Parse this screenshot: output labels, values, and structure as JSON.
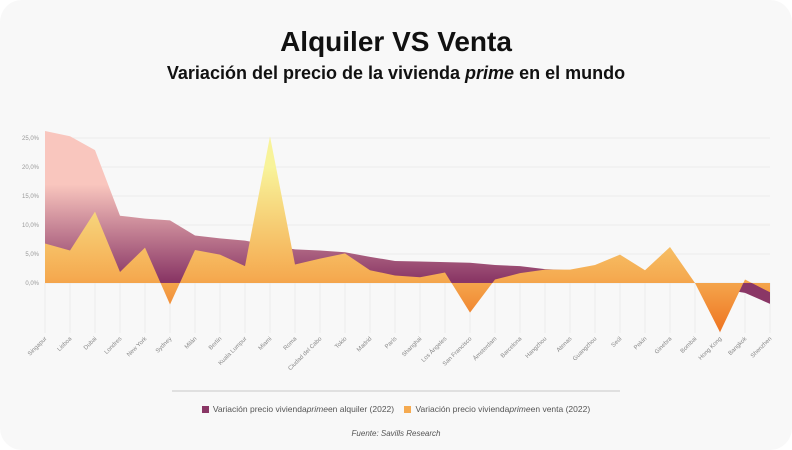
{
  "header": {
    "title": "Alquiler VS Venta",
    "subtitle_pre": "Variación del precio de la vivienda ",
    "subtitle_em": "prime",
    "subtitle_post": " en el mundo"
  },
  "legend": {
    "rent": {
      "pre": "Variación precio vivienda ",
      "em": "prime",
      "post": " en alquiler (2022)"
    },
    "sale": {
      "pre": "Variación precio vivienda ",
      "em": "prime",
      "post": " en venta (2022)"
    }
  },
  "source": "Fuente: Savills Research",
  "colors": {
    "rent_top": "#f9c6be",
    "rent_bottom": "#8a3766",
    "sale_top": "#f8f39a",
    "sale_mid": "#f5aa50",
    "sale_bottom": "#ee7320"
  },
  "chart_data": {
    "type": "area",
    "ylim": [
      -8.6,
      26.5
    ],
    "yticks": [
      "0,0%",
      "5,0%",
      "10,0%",
      "15,0%",
      "20,0%",
      "25,0%"
    ],
    "ytick_values": [
      0,
      5,
      10,
      15,
      20,
      25
    ],
    "grid": true,
    "legend_position": "bottom",
    "categories": [
      "Singapur",
      "Lisboa",
      "Dubai",
      "Londres",
      "New York",
      "Sydney",
      "Milán",
      "Berlín",
      "Kuala Lumpur",
      "Miami",
      "Roma",
      "Ciudad del Cabo",
      "Tokio",
      "Madrid",
      "París",
      "Shanghai",
      "Los Ángeles",
      "San Francisco",
      "Ámsterdam",
      "Barcelona",
      "Hangzhou",
      "Atenas",
      "Guangzhou",
      "Seúl",
      "Pekín",
      "Ginebra",
      "Bombai",
      "Hong Kong",
      "Bangkok",
      "Shenzhen"
    ],
    "series": [
      {
        "name": "Variación precio vivienda prime en alquiler (2022)",
        "values": [
          26.2,
          25.3,
          22.9,
          11.6,
          11.1,
          10.8,
          8.2,
          7.7,
          7.3,
          6.5,
          5.8,
          5.6,
          5.3,
          4.5,
          3.8,
          3.7,
          3.6,
          3.5,
          3.1,
          2.9,
          2.4,
          2.2,
          2.0,
          1.8,
          1.5,
          1.0,
          0.0,
          -1.0,
          -1.7,
          -3.6
        ]
      },
      {
        "name": "Variación precio vivienda prime en venta (2022)",
        "values": [
          6.8,
          5.6,
          12.3,
          1.9,
          6.1,
          -3.7,
          5.7,
          4.9,
          2.9,
          25.3,
          3.2,
          4.2,
          5.1,
          2.2,
          1.3,
          1.0,
          1.8,
          -5.1,
          0.6,
          1.7,
          2.3,
          2.3,
          3.1,
          4.9,
          2.2,
          6.2,
          0.0,
          -8.5,
          0.6,
          -1.6
        ]
      }
    ]
  }
}
